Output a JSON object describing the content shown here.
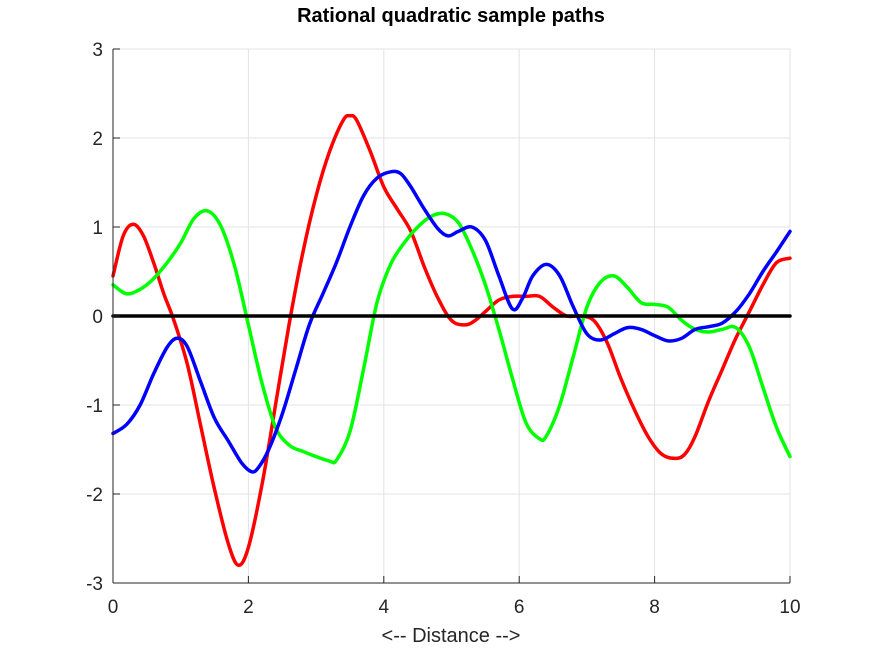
{
  "chart_data": {
    "type": "line",
    "title": "Rational quadratic sample paths",
    "xlabel": "<-- Distance -->",
    "ylabel": "",
    "xlim": [
      0,
      10
    ],
    "ylim": [
      -3,
      3
    ],
    "xticks": [
      0,
      2,
      4,
      6,
      8,
      10
    ],
    "yticks": [
      -3,
      -2,
      -1,
      0,
      1,
      2,
      3
    ],
    "grid": true,
    "series": [
      {
        "color": "#ff0000",
        "x": [
          0,
          0.15,
          0.3,
          0.45,
          0.6,
          0.75,
          0.9,
          1.1,
          1.3,
          1.5,
          1.7,
          1.85,
          2.0,
          2.2,
          2.4,
          2.6,
          2.8,
          3.0,
          3.2,
          3.4,
          3.5,
          3.6,
          3.8,
          4.0,
          4.2,
          4.4,
          4.6,
          4.8,
          5.0,
          5.2,
          5.35,
          5.5,
          5.7,
          5.9,
          6.1,
          6.3,
          6.5,
          6.7,
          6.9,
          7.1,
          7.3,
          7.5,
          7.7,
          7.9,
          8.1,
          8.3,
          8.45,
          8.6,
          8.8,
          9.0,
          9.2,
          9.4,
          9.6,
          9.8,
          10.0
        ],
        "y": [
          0.45,
          0.9,
          1.03,
          0.9,
          0.6,
          0.25,
          -0.05,
          -0.55,
          -1.25,
          -1.95,
          -2.55,
          -2.8,
          -2.6,
          -1.9,
          -1.0,
          -0.1,
          0.7,
          1.35,
          1.85,
          2.2,
          2.25,
          2.2,
          1.85,
          1.45,
          1.2,
          0.95,
          0.55,
          0.2,
          -0.05,
          -0.1,
          -0.05,
          0.05,
          0.18,
          0.22,
          0.22,
          0.22,
          0.1,
          0.0,
          0.0,
          -0.05,
          -0.3,
          -0.7,
          -1.05,
          -1.35,
          -1.55,
          -1.6,
          -1.55,
          -1.35,
          -0.95,
          -0.6,
          -0.25,
          0.05,
          0.35,
          0.6,
          0.65
        ]
      },
      {
        "color": "#00ff00",
        "x": [
          0,
          0.2,
          0.4,
          0.6,
          0.8,
          1.0,
          1.2,
          1.4,
          1.6,
          1.8,
          2.0,
          2.2,
          2.4,
          2.6,
          2.8,
          3.0,
          3.2,
          3.3,
          3.5,
          3.7,
          3.9,
          4.1,
          4.3,
          4.5,
          4.7,
          4.9,
          5.1,
          5.3,
          5.5,
          5.7,
          5.9,
          6.1,
          6.3,
          6.4,
          6.6,
          6.8,
          7.0,
          7.2,
          7.4,
          7.6,
          7.8,
          8.0,
          8.2,
          8.4,
          8.6,
          8.8,
          9.0,
          9.2,
          9.4,
          9.6,
          9.8,
          10.0
        ],
        "y": [
          0.35,
          0.25,
          0.3,
          0.42,
          0.6,
          0.82,
          1.1,
          1.18,
          1.0,
          0.55,
          -0.1,
          -0.75,
          -1.25,
          -1.45,
          -1.52,
          -1.58,
          -1.63,
          -1.62,
          -1.3,
          -0.6,
          0.15,
          0.58,
          0.82,
          1.0,
          1.12,
          1.15,
          1.05,
          0.75,
          0.35,
          -0.15,
          -0.7,
          -1.2,
          -1.38,
          -1.35,
          -1.0,
          -0.45,
          0.1,
          0.38,
          0.45,
          0.32,
          0.15,
          0.13,
          0.1,
          -0.05,
          -0.15,
          -0.18,
          -0.15,
          -0.13,
          -0.35,
          -0.8,
          -1.25,
          -1.58
        ]
      },
      {
        "color": "#0000ff",
        "x": [
          0,
          0.2,
          0.4,
          0.6,
          0.8,
          0.95,
          1.1,
          1.3,
          1.5,
          1.7,
          1.9,
          2.05,
          2.15,
          2.3,
          2.5,
          2.7,
          2.9,
          3.1,
          3.3,
          3.5,
          3.7,
          3.9,
          4.1,
          4.25,
          4.4,
          4.6,
          4.8,
          4.95,
          5.1,
          5.3,
          5.5,
          5.7,
          5.9,
          6.05,
          6.2,
          6.4,
          6.6,
          6.8,
          7.0,
          7.2,
          7.4,
          7.6,
          7.8,
          8.0,
          8.2,
          8.4,
          8.6,
          8.8,
          9.0,
          9.2,
          9.4,
          9.6,
          9.8,
          10.0
        ],
        "y": [
          -1.32,
          -1.22,
          -1.0,
          -0.65,
          -0.35,
          -0.25,
          -0.35,
          -0.75,
          -1.15,
          -1.4,
          -1.65,
          -1.75,
          -1.7,
          -1.5,
          -1.1,
          -0.6,
          -0.1,
          0.25,
          0.6,
          1.0,
          1.35,
          1.55,
          1.62,
          1.6,
          1.45,
          1.2,
          0.98,
          0.9,
          0.95,
          1.0,
          0.85,
          0.45,
          0.08,
          0.2,
          0.45,
          0.58,
          0.45,
          0.1,
          -0.2,
          -0.27,
          -0.2,
          -0.13,
          -0.15,
          -0.22,
          -0.28,
          -0.25,
          -0.15,
          -0.12,
          -0.08,
          0.05,
          0.25,
          0.5,
          0.72,
          0.95
        ]
      },
      {
        "color": "#000000",
        "x": [
          0,
          10
        ],
        "y": [
          0,
          0
        ]
      }
    ]
  }
}
